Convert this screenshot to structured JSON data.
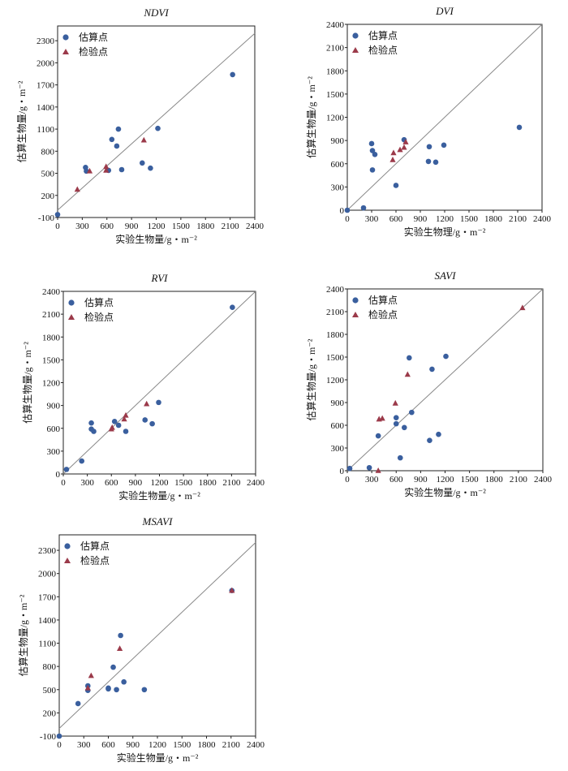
{
  "colors": {
    "estimate": "#3a5f9e",
    "validation": "#9b3a4a",
    "line": "#888888",
    "axis": "#222222"
  },
  "legend": {
    "estimate": "估算点",
    "validation": "检验点"
  },
  "chart_data": [
    {
      "type": "scatter",
      "title": "NDVI",
      "xlabel": "实验生物量/g・m⁻²",
      "ylabel": "估算生物量/g・m⁻²",
      "xlim": [
        0,
        2400
      ],
      "ylim": [
        -100,
        2500
      ],
      "xticks": [
        0,
        300,
        600,
        900,
        1200,
        1500,
        1800,
        2100,
        2400
      ],
      "yticks": [
        -100,
        200,
        500,
        800,
        1100,
        1400,
        1700,
        2000,
        2300
      ],
      "legend_position": "top-left",
      "series": [
        {
          "name": "估算点",
          "marker": "circle",
          "points": [
            [
              0,
              -60
            ],
            [
              340,
              580
            ],
            [
              350,
              530
            ],
            [
              660,
              960
            ],
            [
              620,
              540
            ],
            [
              720,
              870
            ],
            [
              740,
              1100
            ],
            [
              780,
              550
            ],
            [
              1030,
              640
            ],
            [
              1130,
              570
            ],
            [
              1220,
              1110
            ],
            [
              2130,
              1840
            ]
          ]
        },
        {
          "name": "检验点",
          "marker": "triangle",
          "points": [
            [
              240,
              280
            ],
            [
              390,
              530
            ],
            [
              590,
              540
            ],
            [
              590,
              590
            ],
            [
              1050,
              950
            ]
          ]
        }
      ]
    },
    {
      "type": "scatter",
      "title": "DVI",
      "xlabel": "实验生物理/g・m⁻²",
      "ylabel": "估算生物量/g・m⁻²",
      "xlim": [
        0,
        2400
      ],
      "ylim": [
        0,
        2400
      ],
      "xticks": [
        0,
        300,
        600,
        900,
        1200,
        1500,
        1800,
        2100,
        2400
      ],
      "yticks": [
        0,
        300,
        600,
        900,
        1200,
        1500,
        1800,
        2100,
        2400
      ],
      "legend_position": "top-left",
      "series": [
        {
          "name": "估算点",
          "marker": "circle",
          "points": [
            [
              0,
              0
            ],
            [
              200,
              30
            ],
            [
              300,
              860
            ],
            [
              310,
              770
            ],
            [
              310,
              520
            ],
            [
              340,
              720
            ],
            [
              600,
              320
            ],
            [
              700,
              910
            ],
            [
              1000,
              630
            ],
            [
              1010,
              820
            ],
            [
              1090,
              620
            ],
            [
              1190,
              840
            ],
            [
              2120,
              1070
            ]
          ]
        },
        {
          "name": "检验点",
          "marker": "triangle",
          "points": [
            [
              560,
              650
            ],
            [
              570,
              740
            ],
            [
              650,
              780
            ],
            [
              700,
              810
            ],
            [
              720,
              880
            ]
          ]
        }
      ]
    },
    {
      "type": "scatter",
      "title": "RVI",
      "xlabel": "实验生物量/g・m⁻²",
      "ylabel": "估算生物量/g・m⁻²",
      "xlim": [
        0,
        2400
      ],
      "ylim": [
        0,
        2400
      ],
      "xticks": [
        0,
        300,
        600,
        900,
        1200,
        1500,
        1800,
        2100,
        2400
      ],
      "yticks": [
        0,
        300,
        600,
        900,
        1200,
        1500,
        1800,
        2100,
        2400
      ],
      "legend_position": "top-left",
      "series": [
        {
          "name": "估算点",
          "marker": "circle",
          "points": [
            [
              40,
              60
            ],
            [
              230,
              170
            ],
            [
              350,
              670
            ],
            [
              350,
              590
            ],
            [
              380,
              560
            ],
            [
              640,
              690
            ],
            [
              690,
              640
            ],
            [
              780,
              560
            ],
            [
              1020,
              710
            ],
            [
              1110,
              660
            ],
            [
              1190,
              940
            ],
            [
              2110,
              2190
            ]
          ]
        },
        {
          "name": "检验点",
          "marker": "triangle",
          "points": [
            [
              600,
              590
            ],
            [
              610,
              610
            ],
            [
              760,
              720
            ],
            [
              780,
              770
            ],
            [
              1040,
              920
            ]
          ]
        }
      ]
    },
    {
      "type": "scatter",
      "title": "SAVI",
      "xlabel": "实验生物量/g・m⁻²",
      "ylabel": "估算生物量/g・m⁻²",
      "xlim": [
        0,
        2400
      ],
      "ylim": [
        0,
        2400
      ],
      "xticks": [
        0,
        300,
        600,
        900,
        1200,
        1500,
        1800,
        2100,
        2400
      ],
      "yticks": [
        0,
        300,
        600,
        900,
        1200,
        1500,
        1800,
        2100,
        2400
      ],
      "legend_position": "top-left",
      "series": [
        {
          "name": "估算点",
          "marker": "circle",
          "points": [
            [
              30,
              30
            ],
            [
              270,
              40
            ],
            [
              380,
              460
            ],
            [
              600,
              620
            ],
            [
              600,
              700
            ],
            [
              650,
              170
            ],
            [
              700,
              570
            ],
            [
              760,
              1490
            ],
            [
              790,
              770
            ],
            [
              1010,
              400
            ],
            [
              1040,
              1340
            ],
            [
              1120,
              480
            ],
            [
              1210,
              1510
            ]
          ]
        },
        {
          "name": "检验点",
          "marker": "triangle",
          "points": [
            [
              380,
              0
            ],
            [
              390,
              680
            ],
            [
              430,
              690
            ],
            [
              590,
              890
            ],
            [
              740,
              1270
            ],
            [
              2150,
              2150
            ]
          ]
        }
      ]
    },
    {
      "type": "scatter",
      "title": "MSAVI",
      "xlabel": "实验生物量/g・m⁻²",
      "ylabel": "估算生物量/g・m⁻²",
      "xlim": [
        0,
        2400
      ],
      "ylim": [
        -100,
        2500
      ],
      "xticks": [
        0,
        300,
        600,
        900,
        1200,
        1500,
        1800,
        2100,
        2400
      ],
      "yticks": [
        -100,
        200,
        500,
        800,
        1100,
        1400,
        1700,
        2000,
        2300
      ],
      "legend_position": "top-left",
      "series": [
        {
          "name": "估算点",
          "marker": "circle",
          "points": [
            [
              0,
              -100
            ],
            [
              230,
              320
            ],
            [
              350,
              490
            ],
            [
              350,
              550
            ],
            [
              600,
              520
            ],
            [
              600,
              510
            ],
            [
              660,
              790
            ],
            [
              700,
              500
            ],
            [
              750,
              1200
            ],
            [
              790,
              600
            ],
            [
              1040,
              500
            ],
            [
              2110,
              1780
            ]
          ]
        },
        {
          "name": "检验点",
          "marker": "triangle",
          "points": [
            [
              350,
              520
            ],
            [
              390,
              680
            ],
            [
              740,
              1030
            ],
            [
              2110,
              1780
            ]
          ]
        }
      ]
    }
  ]
}
